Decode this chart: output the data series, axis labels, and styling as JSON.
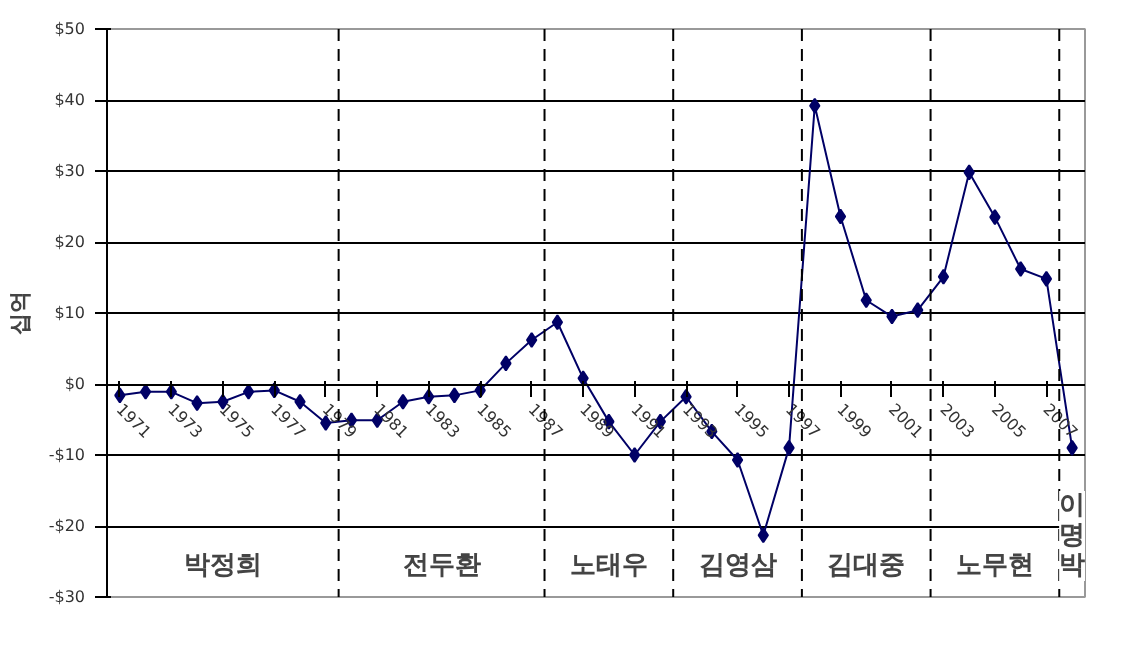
{
  "chart_data": {
    "type": "line",
    "ylabel": "십억",
    "x": [
      1971,
      1972,
      1973,
      1974,
      1975,
      1976,
      1977,
      1978,
      1979,
      1980,
      1981,
      1982,
      1983,
      1984,
      1985,
      1986,
      1987,
      1988,
      1989,
      1990,
      1991,
      1992,
      1993,
      1994,
      1995,
      1996,
      1997,
      1998,
      1999,
      2000,
      2001,
      2002,
      2003,
      2004,
      2005,
      2006,
      2007,
      2008
    ],
    "series": [
      {
        "color": "#000066",
        "values": [
          -1.6,
          -1.1,
          -1.1,
          -2.7,
          -2.5,
          -1.1,
          -0.9,
          -2.5,
          -5.5,
          -5.1,
          -5.1,
          -2.5,
          -1.8,
          -1.6,
          -0.9,
          2.9,
          6.2,
          8.7,
          0.8,
          -5.3,
          -10.0,
          -5.3,
          -1.8,
          -6.7,
          -10.7,
          -21.3,
          -9.0,
          39.2,
          23.6,
          11.8,
          9.5,
          10.4,
          15.1,
          29.8,
          23.5,
          16.2,
          14.8,
          -9.0
        ]
      }
    ],
    "xlim": [
      1970.5,
      2008.5
    ],
    "xticks": [
      1971,
      1973,
      1975,
      1977,
      1979,
      1981,
      1983,
      1985,
      1987,
      1989,
      1991,
      1993,
      1995,
      1997,
      1999,
      2001,
      2003,
      2005,
      2007
    ],
    "ylim": [
      -30,
      50
    ],
    "yticks": [
      {
        "value": -30,
        "label": "-$30"
      },
      {
        "value": -20,
        "label": "-$20"
      },
      {
        "value": -10,
        "label": "-$10"
      },
      {
        "value": 0,
        "label": "$0"
      },
      {
        "value": 10,
        "label": "$10"
      },
      {
        "value": 20,
        "label": "$20"
      },
      {
        "value": 30,
        "label": "$30"
      },
      {
        "value": 40,
        "label": "$40"
      },
      {
        "value": 50,
        "label": "$50"
      }
    ],
    "ref_lines": [
      {
        "axis": "x",
        "value": 1979.5,
        "line_style": "dashed",
        "color": "#000000"
      },
      {
        "axis": "x",
        "value": 1987.5,
        "line_style": "dashed",
        "color": "#000000"
      },
      {
        "axis": "x",
        "value": 1992.5,
        "line_style": "dashed",
        "color": "#000000"
      },
      {
        "axis": "x",
        "value": 1997.5,
        "line_style": "dashed",
        "color": "#000000"
      },
      {
        "axis": "x",
        "value": 2002.5,
        "line_style": "dashed",
        "color": "#000000"
      },
      {
        "axis": "x",
        "value": 2007.5,
        "line_style": "dashed",
        "color": "#000000"
      }
    ],
    "annotations": [
      "박정희",
      "전두환",
      "노태우",
      "김영삼",
      "김대중",
      "노무현",
      "이\n명\n박"
    ],
    "grid": "y",
    "marker": "diamond",
    "line_style": "solid"
  }
}
